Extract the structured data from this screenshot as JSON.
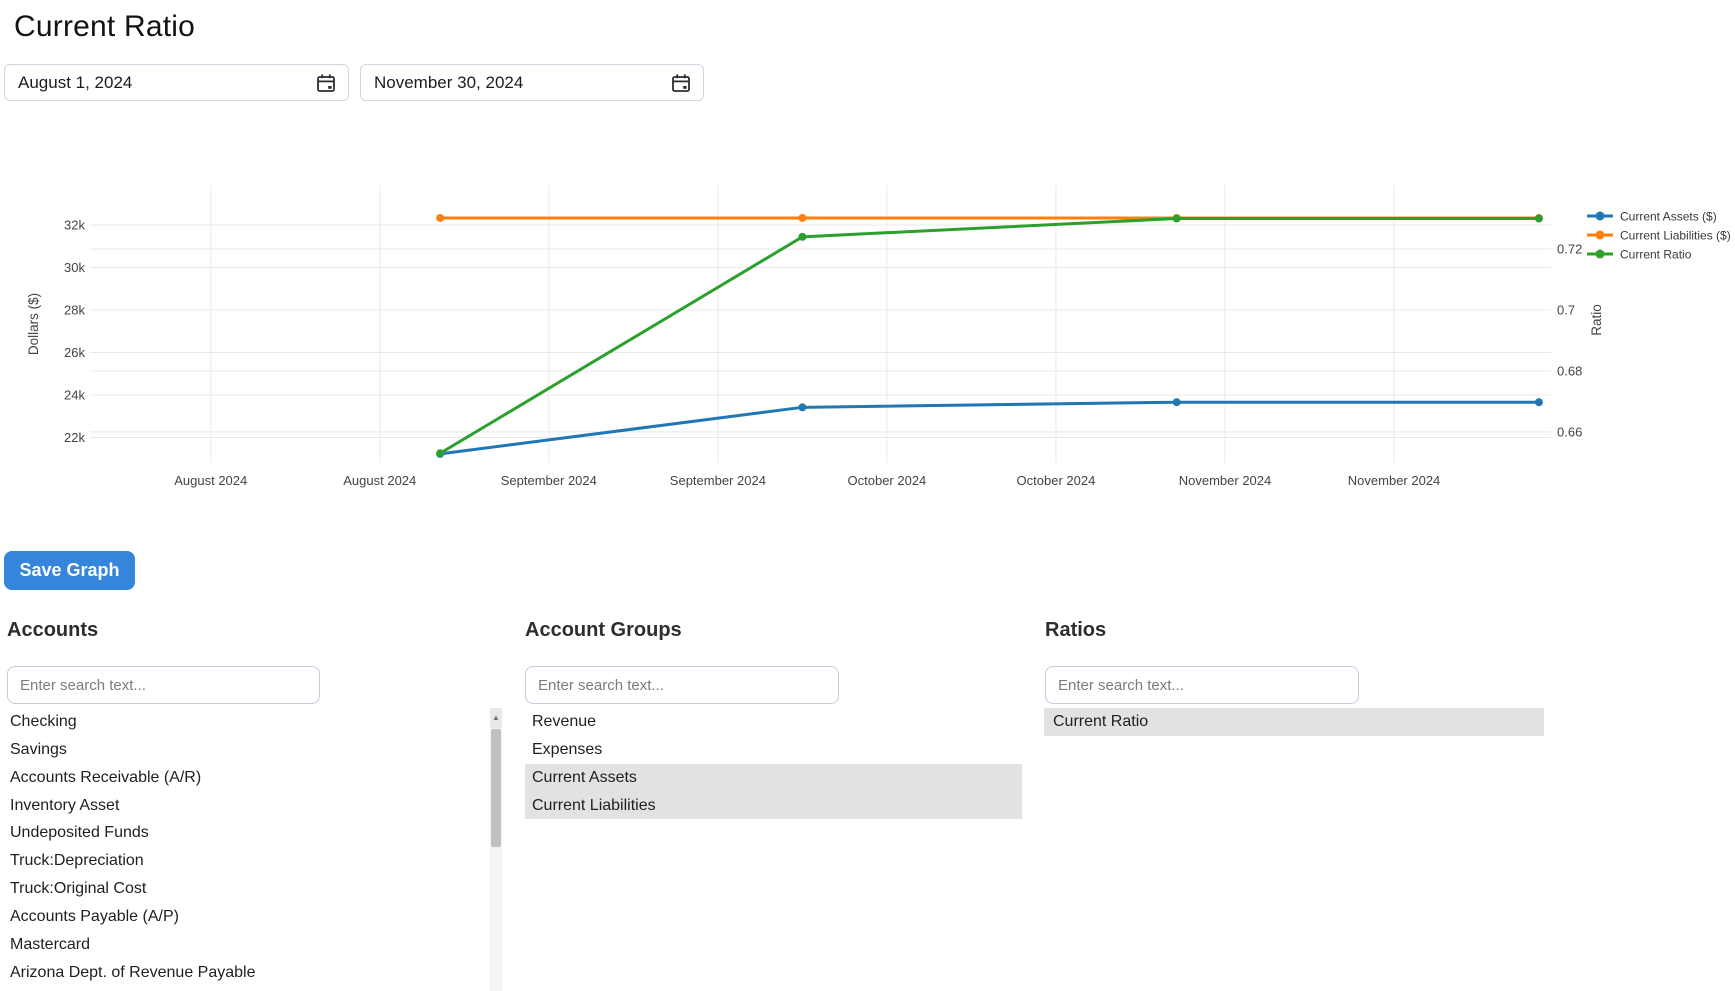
{
  "page": {
    "title": "Current Ratio"
  },
  "date_range": {
    "start_value": "August 1, 2024",
    "end_value": "November 30, 2024"
  },
  "buttons": {
    "save_graph": "Save Graph"
  },
  "icons": {
    "calendar": "calendar-icon",
    "scroll_up": "scroll-up-icon (triangle)"
  },
  "colors": {
    "accent_blue": "#3485db",
    "selected_row_bg": "#e2e2e2",
    "series_assets": "#1f77b4",
    "series_liabilities": "#ff7f0e",
    "series_ratio": "#2ca02c",
    "gridline": "#e8e8e8",
    "tick_text": "#444444"
  },
  "chart_data": {
    "type": "line",
    "title": "",
    "grid": true,
    "legend": {
      "position": "top-right",
      "entries": [
        "Current Assets ($)",
        "Current Liabilities ($)",
        "Current Ratio"
      ]
    },
    "x_type": "date",
    "x_range": [
      "2024-08-02",
      "2024-12-01"
    ],
    "x_points": [
      "2024-08-31",
      "2024-09-30",
      "2024-10-31",
      "2024-11-30"
    ],
    "x_ticks": [
      {
        "date": "2024-08-12",
        "label": "August 2024"
      },
      {
        "date": "2024-08-26",
        "label": "August 2024"
      },
      {
        "date": "2024-09-09",
        "label": "September 2024"
      },
      {
        "date": "2024-09-23",
        "label": "September 2024"
      },
      {
        "date": "2024-10-07",
        "label": "October 2024"
      },
      {
        "date": "2024-10-21",
        "label": "October 2024"
      },
      {
        "date": "2024-11-04",
        "label": "November 2024"
      },
      {
        "date": "2024-11-18",
        "label": "November 2024"
      }
    ],
    "left_axis": {
      "label": "Dollars ($)",
      "range": [
        20800,
        33880
      ],
      "ticks": [
        {
          "value": 32000,
          "label": "32k"
        },
        {
          "value": 30000,
          "label": "30k"
        },
        {
          "value": 28000,
          "label": "28k"
        },
        {
          "value": 26000,
          "label": "26k"
        },
        {
          "value": 24000,
          "label": "24k"
        },
        {
          "value": 22000,
          "label": "22k"
        }
      ]
    },
    "right_axis": {
      "label": "Ratio",
      "range": [
        0.6498,
        0.741
      ],
      "ticks": [
        {
          "value": 0.72,
          "label": "0.72"
        },
        {
          "value": 0.7,
          "label": "0.7"
        },
        {
          "value": 0.68,
          "label": "0.68"
        },
        {
          "value": 0.66,
          "label": "0.66"
        }
      ]
    },
    "series": [
      {
        "name": "Current Assets ($)",
        "color": "#1f77b4",
        "axis": "left",
        "values": [
          21230,
          23420,
          23660,
          23660
        ]
      },
      {
        "name": "Current Liabilities ($)",
        "color": "#ff7f0e",
        "axis": "left",
        "values": [
          32330,
          32330,
          32330,
          32330
        ]
      },
      {
        "name": "Current Ratio",
        "color": "#2ca02c",
        "axis": "right",
        "values": [
          0.653,
          0.724,
          0.73,
          0.73
        ]
      }
    ]
  },
  "panels": {
    "accounts": {
      "heading": "Accounts",
      "search_placeholder": "Enter search text...",
      "items": [
        {
          "label": "Checking",
          "selected": false
        },
        {
          "label": "Savings",
          "selected": false
        },
        {
          "label": "Accounts Receivable (A/R)",
          "selected": false
        },
        {
          "label": "Inventory Asset",
          "selected": false
        },
        {
          "label": "Undeposited Funds",
          "selected": false
        },
        {
          "label": "Truck:Depreciation",
          "selected": false
        },
        {
          "label": "Truck:Original Cost",
          "selected": false
        },
        {
          "label": "Accounts Payable (A/P)",
          "selected": false
        },
        {
          "label": "Mastercard",
          "selected": false
        },
        {
          "label": "Arizona Dept. of Revenue Payable",
          "selected": false
        }
      ]
    },
    "account_groups": {
      "heading": "Account Groups",
      "search_placeholder": "Enter search text...",
      "items": [
        {
          "label": "Revenue",
          "selected": false
        },
        {
          "label": "Expenses",
          "selected": false
        },
        {
          "label": "Current Assets",
          "selected": true
        },
        {
          "label": "Current Liabilities",
          "selected": true
        }
      ]
    },
    "ratios": {
      "heading": "Ratios",
      "search_placeholder": "Enter search text...",
      "items": [
        {
          "label": "Current Ratio",
          "selected": true
        }
      ]
    }
  }
}
